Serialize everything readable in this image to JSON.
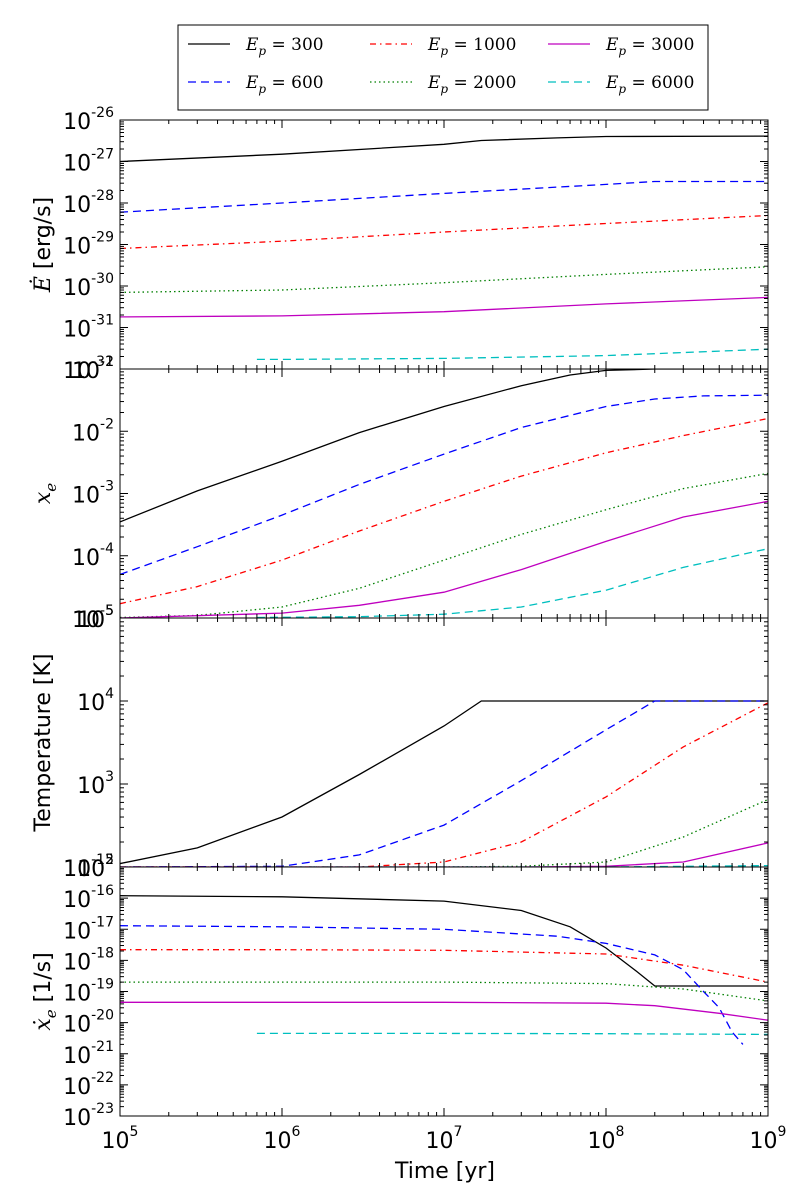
{
  "chart_data": {
    "type": "line",
    "x_scale": "log",
    "xlim": [
      100000,
      1000000000
    ],
    "xlabel": "Time [yr]",
    "x_ticks": [
      {
        "value": 100000,
        "base": "10",
        "exp": "5"
      },
      {
        "value": 1000000,
        "base": "10",
        "exp": "6"
      },
      {
        "value": 10000000,
        "base": "10",
        "exp": "7"
      },
      {
        "value": 100000000,
        "base": "10",
        "exp": "8"
      },
      {
        "value": 1000000000,
        "base": "10",
        "exp": "9"
      }
    ],
    "legend": {
      "placement": "top-center",
      "entries": [
        {
          "symbol": "E",
          "sub": "p",
          "value": "300"
        },
        {
          "symbol": "E",
          "sub": "p",
          "value": "600"
        },
        {
          "symbol": "E",
          "sub": "p",
          "value": "1000"
        },
        {
          "symbol": "E",
          "sub": "p",
          "value": "2000"
        },
        {
          "symbol": "E",
          "sub": "p",
          "value": "3000"
        },
        {
          "symbol": "E",
          "sub": "p",
          "value": "6000"
        }
      ]
    },
    "series_styles": [
      {
        "name": "Ep=300",
        "color": "#000000",
        "dash": ""
      },
      {
        "name": "Ep=600",
        "color": "#0000ff",
        "dash": "8,5"
      },
      {
        "name": "Ep=1000",
        "color": "#ff0000",
        "dash": "6,4,1.5,4"
      },
      {
        "name": "Ep=2000",
        "color": "#007f00",
        "dash": "1.5,3"
      },
      {
        "name": "Ep=3000",
        "color": "#bf00bf",
        "dash": ""
      },
      {
        "name": "Ep=6000",
        "color": "#00bfbf",
        "dash": "8,5"
      }
    ],
    "panels": [
      {
        "id": "edot",
        "ylabel_symbol": "Ė",
        "ylabel_unit": " [erg/s]",
        "y_scale": "log",
        "ylim": [
          1e-32,
          1e-26
        ],
        "y_ticks": [
          {
            "value": 1e-26,
            "base": "10",
            "exp": "-26"
          },
          {
            "value": 1e-27,
            "base": "10",
            "exp": "-27"
          },
          {
            "value": 1e-28,
            "base": "10",
            "exp": "-28"
          },
          {
            "value": 1e-29,
            "base": "10",
            "exp": "-29"
          },
          {
            "value": 1e-30,
            "base": "10",
            "exp": "-30"
          },
          {
            "value": 1e-31,
            "base": "10",
            "exp": "-31"
          },
          {
            "value": 1e-32,
            "base": "10",
            "exp": "-32"
          }
        ],
        "series": [
          {
            "x": [
              100000,
              1000000,
              10000000,
              17000000,
              50000000,
              100000000,
              1000000000
            ],
            "y": [
              1e-27,
              1.5e-27,
              2.6e-27,
              3.2e-27,
              3.7e-27,
              4e-27,
              4.1e-27
            ]
          },
          {
            "x": [
              100000,
              1000000,
              10000000,
              100000000,
              200000000,
              1000000000
            ],
            "y": [
              6e-29,
              1e-28,
              1.7e-28,
              2.8e-28,
              3.3e-28,
              3.3e-28
            ]
          },
          {
            "x": [
              100000,
              1000000,
              10000000,
              100000000,
              1000000000
            ],
            "y": [
              8e-30,
              1.2e-29,
              2e-29,
              3.2e-29,
              5e-29
            ]
          },
          {
            "x": [
              100000,
              1000000,
              10000000,
              100000000,
              1000000000
            ],
            "y": [
              7e-31,
              8e-31,
              1.2e-30,
              1.9e-30,
              2.9e-30
            ]
          },
          {
            "x": [
              100000,
              1000000,
              10000000,
              100000000,
              1000000000
            ],
            "y": [
              1.8e-31,
              1.9e-31,
              2.4e-31,
              3.7e-31,
              5.3e-31
            ]
          },
          {
            "x": [
              700000,
              1000000,
              10000000,
              100000000,
              1000000000
            ],
            "y": [
              1.7e-32,
              1.7e-32,
              1.8e-32,
              2.1e-32,
              3e-32
            ]
          }
        ]
      },
      {
        "id": "xe",
        "ylabel_symbol": "x",
        "ylabel_sub": "e",
        "ylabel_unit": "",
        "y_scale": "log",
        "ylim": [
          1e-05,
          0.1
        ],
        "y_ticks": [
          {
            "value": 0.1,
            "base": "10",
            "exp": "-1"
          },
          {
            "value": 0.01,
            "base": "10",
            "exp": "-2"
          },
          {
            "value": 0.001,
            "base": "10",
            "exp": "-3"
          },
          {
            "value": 0.0001,
            "base": "10",
            "exp": "-4"
          },
          {
            "value": 1e-05,
            "base": "10",
            "exp": "-5"
          }
        ],
        "series": [
          {
            "x": [
              100000,
              300000,
              1000000,
              3000000,
              10000000,
              30000000,
              60000000,
              100000000,
              200000000,
              1000000000
            ],
            "y": [
              0.00035,
              0.0011,
              0.0033,
              0.0095,
              0.025,
              0.054,
              0.08,
              0.095,
              0.1,
              0.1
            ]
          },
          {
            "x": [
              100000,
              300000,
              1000000,
              3000000,
              10000000,
              30000000,
              100000000,
              200000000,
              400000000,
              1000000000
            ],
            "y": [
              5e-05,
              0.00014,
              0.00045,
              0.0014,
              0.0043,
              0.0115,
              0.025,
              0.033,
              0.037,
              0.038
            ]
          },
          {
            "x": [
              100000,
              300000,
              1000000,
              3000000,
              10000000,
              30000000,
              100000000,
              300000000,
              1000000000
            ],
            "y": [
              1.7e-05,
              3.2e-05,
              8.5e-05,
              0.00025,
              0.00075,
              0.0019,
              0.0045,
              0.0085,
              0.016
            ]
          },
          {
            "x": [
              100000,
              300000,
              1000000,
              3000000,
              10000000,
              30000000,
              100000000,
              300000000,
              1000000000
            ],
            "y": [
              1.02e-05,
              1.1e-05,
              1.5e-05,
              3e-05,
              8.5e-05,
              0.00022,
              0.00055,
              0.0012,
              0.0021
            ]
          },
          {
            "x": [
              100000,
              1000000,
              3000000,
              10000000,
              30000000,
              100000000,
              300000000,
              1000000000
            ],
            "y": [
              1e-05,
              1.2e-05,
              1.6e-05,
              2.6e-05,
              6e-05,
              0.00017,
              0.00042,
              0.00075
            ]
          },
          {
            "x": [
              700000,
              3000000,
              10000000,
              30000000,
              100000000,
              300000000,
              1000000000
            ],
            "y": [
              1.02e-05,
              1.05e-05,
              1.15e-05,
              1.5e-05,
              2.8e-05,
              6.5e-05,
              0.00013
            ]
          }
        ]
      },
      {
        "id": "temperature",
        "ylabel_symbol": "",
        "ylabel_unit": "Temperature [K]",
        "y_scale": "log",
        "ylim": [
          100,
          100000
        ],
        "y_ticks": [
          {
            "value": 100000,
            "base": "10",
            "exp": "5"
          },
          {
            "value": 10000,
            "base": "10",
            "exp": "4"
          },
          {
            "value": 1000,
            "base": "10",
            "exp": "3"
          },
          {
            "value": 100,
            "base": "10",
            "exp": "2"
          }
        ],
        "series": [
          {
            "x": [
              100000,
              300000,
              1000000,
              3000000,
              10000000,
              17000000,
              1000000000
            ],
            "y": [
              110,
              170,
              400,
              1300,
              5000,
              10000,
              10000
            ]
          },
          {
            "x": [
              100000,
              1000000,
              3000000,
              10000000,
              30000000,
              100000000,
              200000000,
              1000000000
            ],
            "y": [
              100,
              102,
              140,
              320,
              1100,
              4500,
              10000,
              10000
            ]
          },
          {
            "x": [
              100000,
              3000000,
              10000000,
              30000000,
              100000000,
              300000000,
              1000000000
            ],
            "y": [
              100,
              100,
              115,
              200,
              700,
              2800,
              9500
            ]
          },
          {
            "x": [
              100000,
              10000000,
              30000000,
              100000000,
              300000000,
              1000000000
            ],
            "y": [
              100,
              100,
              102,
              115,
              230,
              650
            ]
          },
          {
            "x": [
              100000,
              30000000,
              100000000,
              300000000,
              1000000000
            ],
            "y": [
              100,
              100,
              102,
              115,
              195
            ]
          },
          {
            "x": [
              700000,
              100000000,
              1000000000
            ],
            "y": [
              100,
              100,
              104
            ]
          }
        ]
      },
      {
        "id": "xedot",
        "ylabel_symbol": "ẋ",
        "ylabel_sub": "e",
        "ylabel_unit": " [1/s]",
        "y_scale": "log",
        "ylim": [
          1e-23,
          1e-15
        ],
        "y_ticks": [
          {
            "value": 1e-15,
            "base": "10",
            "exp": "-15"
          },
          {
            "value": 1e-16,
            "base": "10",
            "exp": "-16"
          },
          {
            "value": 1e-17,
            "base": "10",
            "exp": "-17"
          },
          {
            "value": 1e-18,
            "base": "10",
            "exp": "-18"
          },
          {
            "value": 1e-19,
            "base": "10",
            "exp": "-19"
          },
          {
            "value": 1e-20,
            "base": "10",
            "exp": "-20"
          },
          {
            "value": 1e-21,
            "base": "10",
            "exp": "-21"
          },
          {
            "value": 1e-22,
            "base": "10",
            "exp": "-22"
          },
          {
            "value": 1e-23,
            "base": "10",
            "exp": "-23"
          }
        ],
        "series": [
          {
            "x": [
              100000,
              1000000,
              10000000,
              30000000,
              60000000,
              100000000,
              150000000,
              200000000,
              1000000000
            ],
            "y": [
              1.2e-16,
              1.1e-16,
              8e-17,
              4e-17,
              1.2e-17,
              2.5e-18,
              5e-19,
              1.5e-19,
              1.5e-19
            ]
          },
          {
            "x": [
              100000,
              1000000,
              10000000,
              50000000,
              100000000,
              200000000,
              300000000,
              400000000,
              500000000,
              600000000,
              700000000
            ],
            "y": [
              1.3e-17,
              1.2e-17,
              1e-17,
              6e-18,
              3.5e-18,
              1.5e-18,
              5e-19,
              1e-19,
              3e-20,
              5e-21,
              2e-21
            ]
          },
          {
            "x": [
              100000,
              1000000,
              10000000,
              100000000,
              300000000,
              1000000000
            ],
            "y": [
              2.2e-18,
              2.2e-18,
              2.1e-18,
              1.6e-18,
              7e-19,
              2e-19
            ]
          },
          {
            "x": [
              100000,
              1000000,
              10000000,
              100000000,
              300000000,
              1000000000
            ],
            "y": [
              2e-19,
              2e-19,
              2e-19,
              1.8e-19,
              1.2e-19,
              5e-20
            ]
          },
          {
            "x": [
              100000,
              1000000,
              10000000,
              100000000,
              200000000,
              500000000,
              1000000000
            ],
            "y": [
              4.5e-20,
              4.5e-20,
              4.5e-20,
              4.2e-20,
              3.5e-20,
              2e-20,
              1.2e-20
            ]
          },
          {
            "x": [
              700000,
              10000000,
              100000000,
              1000000000
            ],
            "y": [
              4.5e-21,
              4.5e-21,
              4.4e-21,
              4.2e-21
            ]
          }
        ]
      }
    ]
  }
}
